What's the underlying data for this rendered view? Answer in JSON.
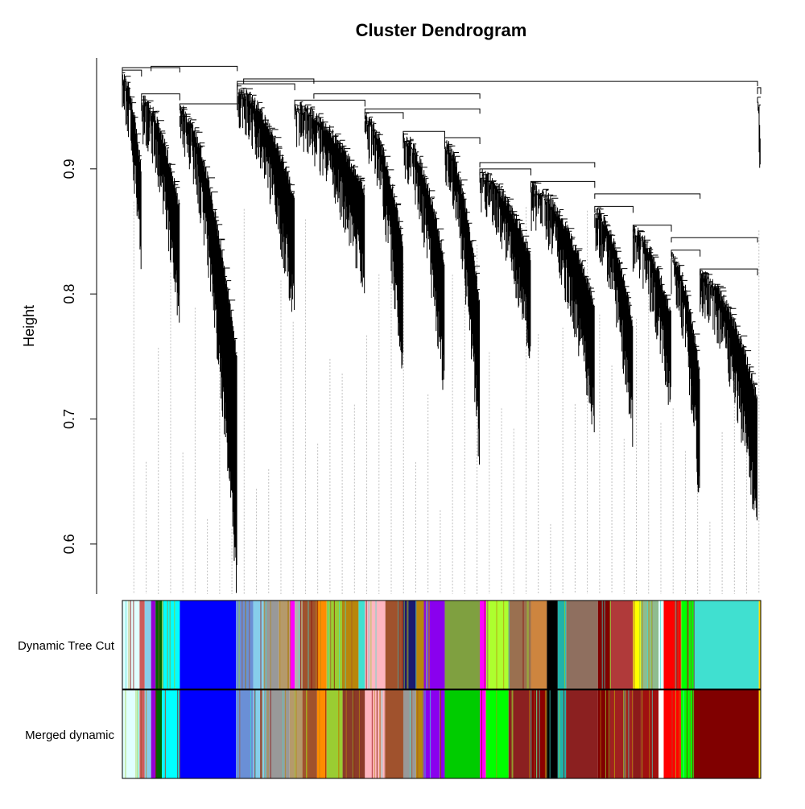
{
  "chart_data": {
    "type": "dendrogram",
    "title": "Cluster Dendrogram",
    "ylabel": "Height",
    "ylim": [
      0.56,
      0.99
    ],
    "yticks": [
      0.6,
      0.7,
      0.8,
      0.9
    ],
    "ytick_labels": [
      "0.6",
      "0.7",
      "0.8",
      "0.9"
    ],
    "grid": false,
    "legend": "none",
    "leaf_count": 1000,
    "color_rows": [
      {
        "label": "Dynamic Tree Cut",
        "segments": [
          {
            "start": 0.0,
            "end": 0.027,
            "color": "#e0ffff"
          },
          {
            "start": 0.027,
            "end": 0.035,
            "color": "#cd5c5c"
          },
          {
            "start": 0.035,
            "end": 0.045,
            "color": "#87ceeb"
          },
          {
            "start": 0.045,
            "end": 0.052,
            "color": "#9400d3"
          },
          {
            "start": 0.052,
            "end": 0.062,
            "color": "#006400"
          },
          {
            "start": 0.062,
            "end": 0.09,
            "color": "#00ffff"
          },
          {
            "start": 0.09,
            "end": 0.178,
            "color": "#0000ff"
          },
          {
            "start": 0.178,
            "end": 0.205,
            "color": "#6a8fd6"
          },
          {
            "start": 0.205,
            "end": 0.222,
            "color": "#87ceeb"
          },
          {
            "start": 0.222,
            "end": 0.245,
            "color": "#999999"
          },
          {
            "start": 0.245,
            "end": 0.262,
            "color": "#b59a6b"
          },
          {
            "start": 0.262,
            "end": 0.27,
            "color": "#ff00ff"
          },
          {
            "start": 0.27,
            "end": 0.282,
            "color": "#b0b0b0"
          },
          {
            "start": 0.282,
            "end": 0.305,
            "color": "#a0522d"
          },
          {
            "start": 0.305,
            "end": 0.32,
            "color": "#ff8c00"
          },
          {
            "start": 0.32,
            "end": 0.345,
            "color": "#9acd32"
          },
          {
            "start": 0.345,
            "end": 0.37,
            "color": "#b8860b"
          },
          {
            "start": 0.37,
            "end": 0.38,
            "color": "#40e0d0"
          },
          {
            "start": 0.38,
            "end": 0.412,
            "color": "#ffb6c1"
          },
          {
            "start": 0.412,
            "end": 0.44,
            "color": "#a0522d"
          },
          {
            "start": 0.44,
            "end": 0.46,
            "color": "#191970"
          },
          {
            "start": 0.46,
            "end": 0.472,
            "color": "#b8860b"
          },
          {
            "start": 0.472,
            "end": 0.505,
            "color": "#8a00ee"
          },
          {
            "start": 0.505,
            "end": 0.56,
            "color": "#7fa040"
          },
          {
            "start": 0.56,
            "end": 0.57,
            "color": "#ff00ff"
          },
          {
            "start": 0.57,
            "end": 0.605,
            "color": "#adff2f"
          },
          {
            "start": 0.605,
            "end": 0.64,
            "color": "#9a7050"
          },
          {
            "start": 0.64,
            "end": 0.665,
            "color": "#cd853f"
          },
          {
            "start": 0.665,
            "end": 0.682,
            "color": "#000000"
          },
          {
            "start": 0.682,
            "end": 0.695,
            "color": "#20b2aa"
          },
          {
            "start": 0.695,
            "end": 0.745,
            "color": "#8f6f5f"
          },
          {
            "start": 0.745,
            "end": 0.765,
            "color": "#800000"
          },
          {
            "start": 0.765,
            "end": 0.8,
            "color": "#b03a3a"
          },
          {
            "start": 0.8,
            "end": 0.812,
            "color": "#ffff00"
          },
          {
            "start": 0.812,
            "end": 0.84,
            "color": "#8fbc8f"
          },
          {
            "start": 0.84,
            "end": 0.848,
            "color": "#e0ffff"
          },
          {
            "start": 0.848,
            "end": 0.875,
            "color": "#ff0000"
          },
          {
            "start": 0.875,
            "end": 0.895,
            "color": "#00ff00"
          },
          {
            "start": 0.895,
            "end": 0.997,
            "color": "#40e0d0"
          },
          {
            "start": 0.997,
            "end": 1.0,
            "color": "#ffd700"
          }
        ]
      },
      {
        "label": "Merged dynamic",
        "segments": [
          {
            "start": 0.0,
            "end": 0.027,
            "color": "#e0ffff"
          },
          {
            "start": 0.027,
            "end": 0.035,
            "color": "#cd5c5c"
          },
          {
            "start": 0.035,
            "end": 0.045,
            "color": "#87ceeb"
          },
          {
            "start": 0.045,
            "end": 0.052,
            "color": "#9400d3"
          },
          {
            "start": 0.052,
            "end": 0.062,
            "color": "#006400"
          },
          {
            "start": 0.062,
            "end": 0.09,
            "color": "#00ffff"
          },
          {
            "start": 0.09,
            "end": 0.178,
            "color": "#0000ff"
          },
          {
            "start": 0.178,
            "end": 0.205,
            "color": "#6a8fd6"
          },
          {
            "start": 0.205,
            "end": 0.222,
            "color": "#87ceeb"
          },
          {
            "start": 0.222,
            "end": 0.262,
            "color": "#999999"
          },
          {
            "start": 0.262,
            "end": 0.282,
            "color": "#b59a6b"
          },
          {
            "start": 0.282,
            "end": 0.305,
            "color": "#a0522d"
          },
          {
            "start": 0.305,
            "end": 0.32,
            "color": "#ff8c00"
          },
          {
            "start": 0.32,
            "end": 0.345,
            "color": "#9acd32"
          },
          {
            "start": 0.345,
            "end": 0.38,
            "color": "#8b3a2a"
          },
          {
            "start": 0.38,
            "end": 0.412,
            "color": "#ffb6c1"
          },
          {
            "start": 0.412,
            "end": 0.44,
            "color": "#a0522d"
          },
          {
            "start": 0.44,
            "end": 0.46,
            "color": "#999999"
          },
          {
            "start": 0.46,
            "end": 0.472,
            "color": "#b8860b"
          },
          {
            "start": 0.472,
            "end": 0.505,
            "color": "#8a00ee"
          },
          {
            "start": 0.505,
            "end": 0.56,
            "color": "#00cc00"
          },
          {
            "start": 0.56,
            "end": 0.57,
            "color": "#ff00ff"
          },
          {
            "start": 0.57,
            "end": 0.605,
            "color": "#00ff00"
          },
          {
            "start": 0.605,
            "end": 0.64,
            "color": "#8b2020"
          },
          {
            "start": 0.64,
            "end": 0.665,
            "color": "#8b0000"
          },
          {
            "start": 0.665,
            "end": 0.682,
            "color": "#000000"
          },
          {
            "start": 0.682,
            "end": 0.695,
            "color": "#20b2aa"
          },
          {
            "start": 0.695,
            "end": 0.745,
            "color": "#8b2020"
          },
          {
            "start": 0.745,
            "end": 0.765,
            "color": "#800000"
          },
          {
            "start": 0.765,
            "end": 0.8,
            "color": "#a02020"
          },
          {
            "start": 0.8,
            "end": 0.812,
            "color": "#8b1a1a"
          },
          {
            "start": 0.812,
            "end": 0.84,
            "color": "#a01010"
          },
          {
            "start": 0.84,
            "end": 0.848,
            "color": "#ffffff"
          },
          {
            "start": 0.848,
            "end": 0.875,
            "color": "#ff0000"
          },
          {
            "start": 0.875,
            "end": 0.895,
            "color": "#00ff00"
          },
          {
            "start": 0.895,
            "end": 0.997,
            "color": "#800000"
          },
          {
            "start": 0.997,
            "end": 1.0,
            "color": "#ffd700"
          }
        ]
      }
    ],
    "colors": {
      "line": "#000000",
      "guide": "#bfbfbf"
    }
  }
}
